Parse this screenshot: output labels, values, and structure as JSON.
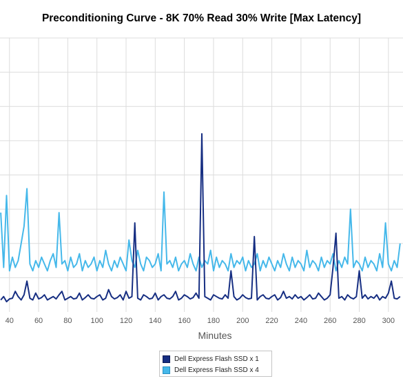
{
  "chart_data": {
    "type": "line",
    "title": "Preconditioning Curve - 8K 70% Read 30% Write [Max Latency]",
    "xlabel": "Minutes",
    "ylabel": "",
    "x_ticks": [
      40,
      60,
      80,
      100,
      120,
      140,
      160,
      180,
      200,
      220,
      240,
      260,
      280,
      300
    ],
    "x_range": [
      33.5,
      310
    ],
    "y_range": [
      0,
      8
    ],
    "y_ticks": [
      1,
      2,
      3,
      4,
      5,
      6,
      7,
      8
    ],
    "grid": true,
    "legend_position": "bottom-center",
    "x": [
      34,
      36,
      38,
      40,
      42,
      44,
      46,
      48,
      50,
      52,
      54,
      56,
      58,
      60,
      62,
      64,
      66,
      68,
      70,
      72,
      74,
      76,
      78,
      80,
      82,
      84,
      86,
      88,
      90,
      92,
      94,
      96,
      98,
      100,
      102,
      104,
      106,
      108,
      110,
      112,
      114,
      116,
      118,
      120,
      122,
      124,
      126,
      128,
      130,
      132,
      134,
      136,
      138,
      140,
      142,
      144,
      146,
      148,
      150,
      152,
      154,
      156,
      158,
      160,
      162,
      164,
      166,
      168,
      170,
      172,
      174,
      176,
      178,
      180,
      182,
      184,
      186,
      188,
      190,
      192,
      194,
      196,
      198,
      200,
      202,
      204,
      206,
      208,
      210,
      212,
      214,
      216,
      218,
      220,
      222,
      224,
      226,
      228,
      230,
      232,
      234,
      236,
      238,
      240,
      242,
      244,
      246,
      248,
      250,
      252,
      254,
      256,
      258,
      260,
      262,
      264,
      266,
      268,
      270,
      272,
      274,
      276,
      278,
      280,
      282,
      284,
      286,
      288,
      290,
      292,
      294,
      296,
      298,
      300,
      302,
      304,
      306,
      308
    ],
    "series": [
      {
        "name": "Dell Express Flash SSD x 1",
        "color": "#162e82",
        "values": [
          0.35,
          0.45,
          0.3,
          0.38,
          0.4,
          0.6,
          0.45,
          0.35,
          0.5,
          0.9,
          0.4,
          0.35,
          0.55,
          0.38,
          0.42,
          0.5,
          0.35,
          0.4,
          0.45,
          0.38,
          0.5,
          0.6,
          0.35,
          0.4,
          0.45,
          0.38,
          0.4,
          0.55,
          0.35,
          0.42,
          0.5,
          0.4,
          0.38,
          0.45,
          0.5,
          0.35,
          0.4,
          0.65,
          0.45,
          0.38,
          0.42,
          0.5,
          0.35,
          0.6,
          0.4,
          0.45,
          2.6,
          0.4,
          0.35,
          0.5,
          0.45,
          0.38,
          0.4,
          0.55,
          0.35,
          0.45,
          0.5,
          0.4,
          0.38,
          0.45,
          0.6,
          0.35,
          0.4,
          0.5,
          0.45,
          0.38,
          0.42,
          0.55,
          0.4,
          5.2,
          0.45,
          0.4,
          0.35,
          0.5,
          0.45,
          0.4,
          0.38,
          0.5,
          0.4,
          1.2,
          0.45,
          0.35,
          0.4,
          0.5,
          0.42,
          0.38,
          0.4,
          2.2,
          0.35,
          0.45,
          0.5,
          0.4,
          0.38,
          0.45,
          0.5,
          0.35,
          0.42,
          0.6,
          0.4,
          0.45,
          0.38,
          0.5,
          0.4,
          0.45,
          0.35,
          0.42,
          0.5,
          0.38,
          0.4,
          0.55,
          0.45,
          0.35,
          0.4,
          0.5,
          1.3,
          2.3,
          0.4,
          0.45,
          0.35,
          0.5,
          0.42,
          0.38,
          0.45,
          1.2,
          0.4,
          0.5,
          0.38,
          0.45,
          0.4,
          0.5,
          0.35,
          0.45,
          0.4,
          0.55,
          0.9,
          0.4,
          0.38,
          0.45
        ]
      },
      {
        "name": "Dell Express Flash SSD x 4",
        "color": "#45b8ea",
        "values": [
          2.9,
          1.3,
          3.4,
          1.2,
          1.6,
          1.3,
          1.5,
          2.0,
          2.5,
          3.6,
          1.4,
          1.2,
          1.5,
          1.3,
          1.6,
          1.4,
          1.2,
          1.5,
          1.7,
          1.3,
          2.9,
          1.4,
          1.5,
          1.2,
          1.6,
          1.3,
          1.4,
          1.7,
          1.2,
          1.5,
          1.3,
          1.4,
          1.6,
          1.2,
          1.5,
          1.3,
          1.8,
          1.4,
          1.2,
          1.5,
          1.3,
          1.6,
          1.4,
          1.2,
          2.1,
          1.5,
          1.3,
          1.8,
          1.4,
          1.2,
          1.6,
          1.5,
          1.3,
          1.4,
          1.7,
          1.2,
          3.5,
          1.4,
          1.5,
          1.3,
          1.6,
          1.2,
          1.4,
          1.5,
          1.3,
          1.7,
          1.4,
          1.2,
          1.6,
          1.3,
          1.5,
          1.4,
          1.8,
          1.2,
          1.6,
          1.3,
          1.5,
          1.4,
          1.2,
          1.7,
          1.3,
          1.5,
          1.4,
          1.6,
          1.2,
          1.5,
          1.3,
          1.4,
          1.7,
          1.2,
          1.5,
          1.3,
          1.6,
          1.4,
          1.2,
          1.5,
          1.3,
          1.7,
          1.4,
          1.2,
          1.6,
          1.3,
          1.5,
          1.4,
          1.2,
          1.8,
          1.3,
          1.5,
          1.4,
          1.2,
          1.6,
          1.3,
          1.5,
          1.4,
          1.7,
          1.2,
          1.5,
          1.3,
          1.6,
          1.4,
          3.0,
          1.3,
          1.5,
          1.4,
          1.2,
          1.6,
          1.3,
          1.5,
          1.4,
          1.2,
          1.7,
          1.3,
          2.6,
          1.4,
          1.2,
          1.5,
          1.3,
          2.0
        ]
      }
    ]
  }
}
